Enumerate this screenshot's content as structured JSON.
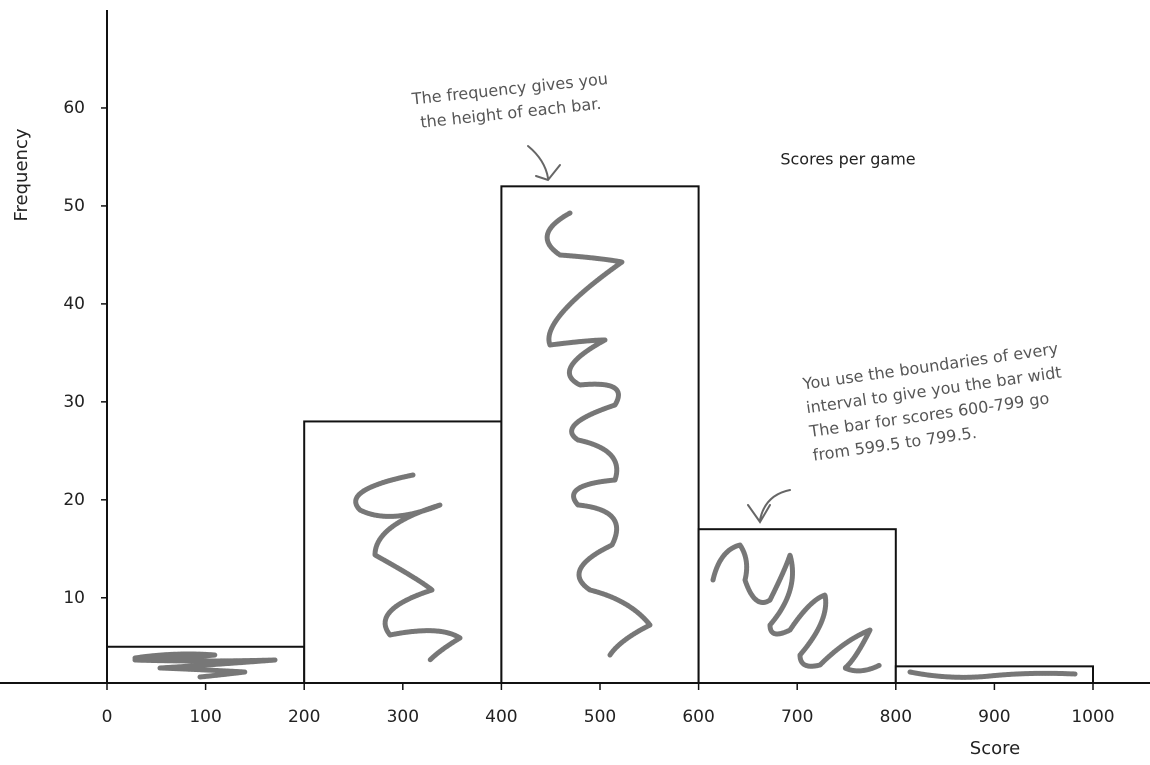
{
  "chart_data": {
    "type": "histogram",
    "title": "Scores per game",
    "x_label": "Score",
    "y_label": "Frequency",
    "annotations": [
      [
        "The frequency gives you",
        "the height of each bar."
      ],
      [
        "You use the boundaries of every",
        "interval to give you the bar widt",
        "The bar for scores 600-799 go",
        "from 599.5 to 799.5."
      ]
    ],
    "bins": [
      0,
      200,
      400,
      600,
      800,
      1000
    ],
    "counts": [
      5,
      28,
      52,
      17,
      3
    ],
    "color": "#ffffff",
    "edge_color": "#111111",
    "xlim": [
      0,
      1000
    ],
    "xticks": [
      0,
      100,
      200,
      300,
      400,
      500,
      600,
      700,
      800,
      900,
      1000
    ],
    "ylim": [
      1.3,
      70
    ],
    "yticks": [
      10,
      20,
      30,
      40,
      50,
      60
    ],
    "grid": false
  }
}
